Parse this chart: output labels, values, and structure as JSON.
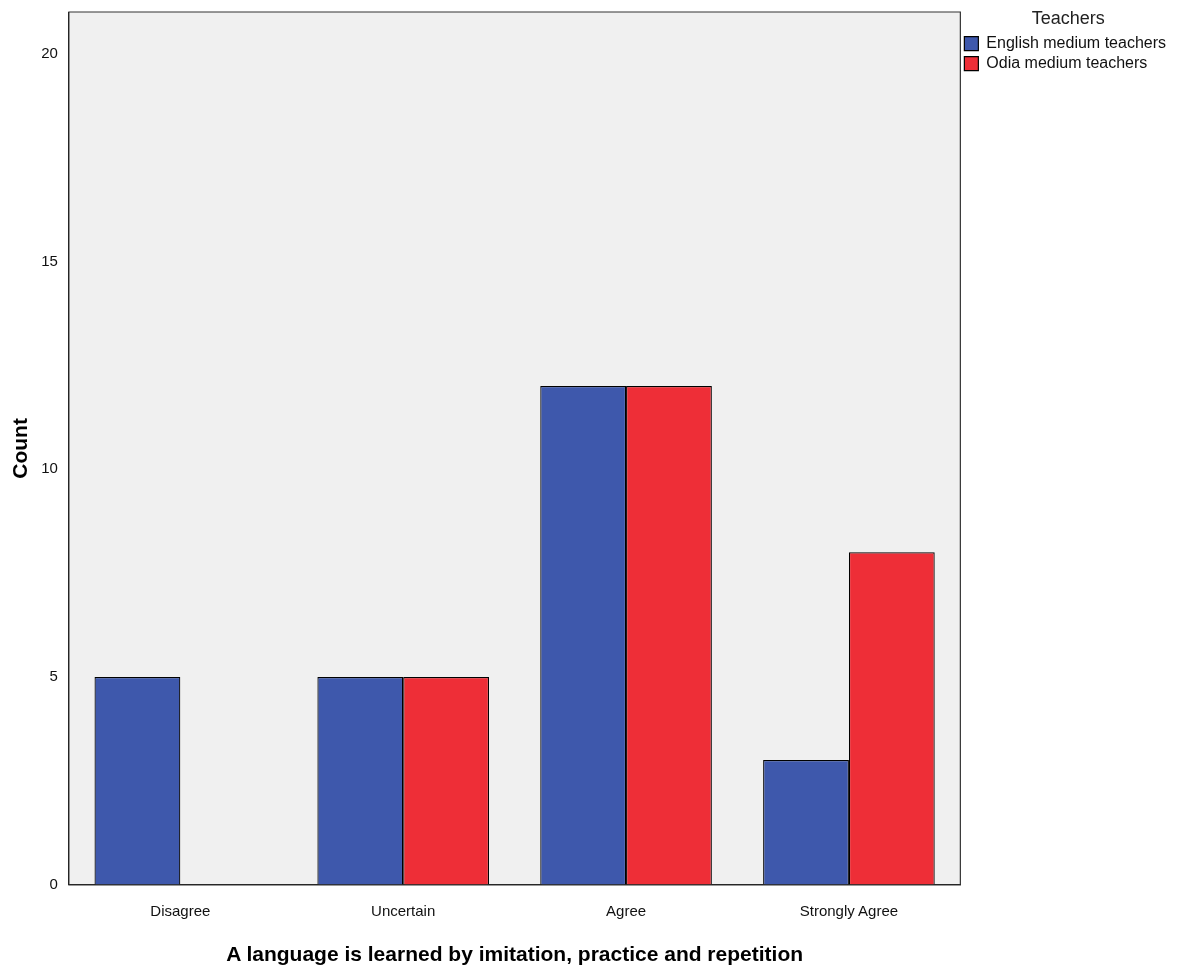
{
  "chart_data": {
    "type": "bar",
    "xlabel": "A language is learned by imitation, practice and repetition",
    "ylabel": "Count",
    "legend_title": "Teachers",
    "categories": [
      "Disagree",
      "Uncertain",
      "Agree",
      "Strongly Agree"
    ],
    "series": [
      {
        "name": "English medium teachers",
        "color": "#3e58ac",
        "values": [
          5,
          5,
          12,
          3
        ]
      },
      {
        "name": "Odia medium teachers",
        "color": "#ee2e37",
        "values": [
          0,
          5,
          12,
          8
        ]
      }
    ],
    "ylim": [
      0,
      21
    ],
    "yticks": [
      0,
      5,
      10,
      15,
      20
    ],
    "grid": false,
    "legend": "top right"
  }
}
